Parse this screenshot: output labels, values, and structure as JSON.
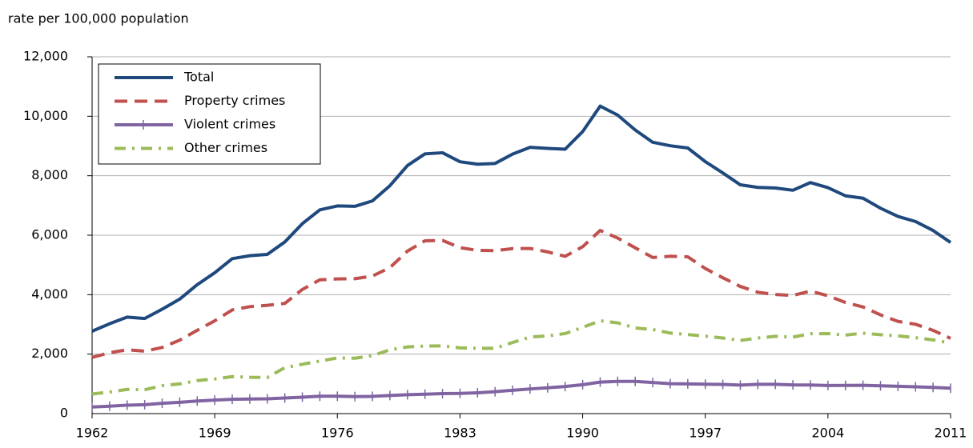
{
  "chart_data": {
    "type": "line",
    "y_label": "rate per 100,000 population",
    "x": [
      1962,
      1963,
      1964,
      1965,
      1966,
      1967,
      1968,
      1969,
      1970,
      1971,
      1972,
      1973,
      1974,
      1975,
      1976,
      1977,
      1978,
      1979,
      1980,
      1981,
      1982,
      1983,
      1984,
      1985,
      1986,
      1987,
      1988,
      1989,
      1990,
      1991,
      1992,
      1993,
      1994,
      1995,
      1996,
      1997,
      1998,
      1999,
      2000,
      2001,
      2002,
      2003,
      2004,
      2005,
      2006,
      2007,
      2008,
      2009,
      2010,
      2011
    ],
    "xlim": [
      1962,
      2011
    ],
    "xticks": [
      1962,
      1969,
      1976,
      1983,
      1990,
      1997,
      2004,
      2011
    ],
    "ylim": [
      0,
      12000
    ],
    "yticks": [
      0,
      {
        "value": 2000,
        "label": "2,000"
      },
      {
        "value": 4000,
        "label": "4,000"
      },
      {
        "value": 6000,
        "label": "6,000"
      },
      {
        "value": 8000,
        "label": "8,000"
      },
      {
        "value": 10000,
        "label": "10,000"
      },
      {
        "value": 12000,
        "label": "12,000"
      }
    ],
    "grid": true,
    "legend": "upper left",
    "series": [
      {
        "name": "Total",
        "color": "#1f497d",
        "style": "solid",
        "values": [
          2771,
          3022,
          3245,
          3199,
          3511,
          3850,
          4336,
          4737,
          5212,
          5311,
          5355,
          5773,
          6388,
          6852,
          6984,
          6971,
          7154,
          7666,
          8343,
          8736,
          8773,
          8470,
          8387,
          8413,
          8727,
          8957,
          8919,
          8892,
          9485,
          10342,
          10040,
          9538,
          9125,
          9008,
          8933,
          8475,
          8093,
          7694,
          7607,
          7587,
          7512,
          7770,
          7600,
          7325,
          7245,
          6908,
          6631,
          6461,
          6159,
          5756
        ]
      },
      {
        "name": "Property crimes",
        "color": "#c0504d",
        "style": "dashed",
        "values": [
          1891,
          2047,
          2146,
          2099,
          2224,
          2471,
          2802,
          3120,
          3487,
          3597,
          3643,
          3705,
          4175,
          4500,
          4529,
          4536,
          4626,
          4910,
          5465,
          5811,
          5825,
          5581,
          5489,
          5480,
          5550,
          5553,
          5439,
          5289,
          5612,
          6160,
          5904,
          5575,
          5251,
          5292,
          5274,
          4880,
          4569,
          4276,
          4081,
          4004,
          3974,
          4121,
          3964,
          3737,
          3588,
          3321,
          3100,
          3005,
          2799,
          2531
        ]
      },
      {
        "name": "Violent crimes",
        "color": "#8064a2",
        "style": "solid-marked",
        "values": [
          221,
          249,
          284,
          299,
          347,
          381,
          423,
          453,
          481,
          492,
          497,
          524,
          553,
          585,
          584,
          572,
          580,
          610,
          636,
          654,
          671,
          679,
          701,
          735,
          785,
          829,
          868,
          911,
          973,
          1059,
          1084,
          1082,
          1046,
          1007,
          1000,
          990,
          982,
          958,
          984,
          984,
          966,
          963,
          946,
          947,
          952,
          934,
          917,
          902,
          881,
          853
        ]
      },
      {
        "name": "Other crimes",
        "color": "#9bbb59",
        "style": "dashdot",
        "values": [
          659,
          726,
          815,
          801,
          940,
          998,
          1111,
          1164,
          1244,
          1222,
          1215,
          1544,
          1660,
          1767,
          1871,
          1863,
          1948,
          2146,
          2242,
          2271,
          2277,
          2210,
          2197,
          2198,
          2392,
          2575,
          2612,
          2692,
          2900,
          3123,
          3052,
          2881,
          2828,
          2709,
          2659,
          2605,
          2542,
          2460,
          2542,
          2599,
          2572,
          2686,
          2690,
          2641,
          2705,
          2653,
          2614,
          2554,
          2479,
          2372
        ]
      }
    ]
  }
}
